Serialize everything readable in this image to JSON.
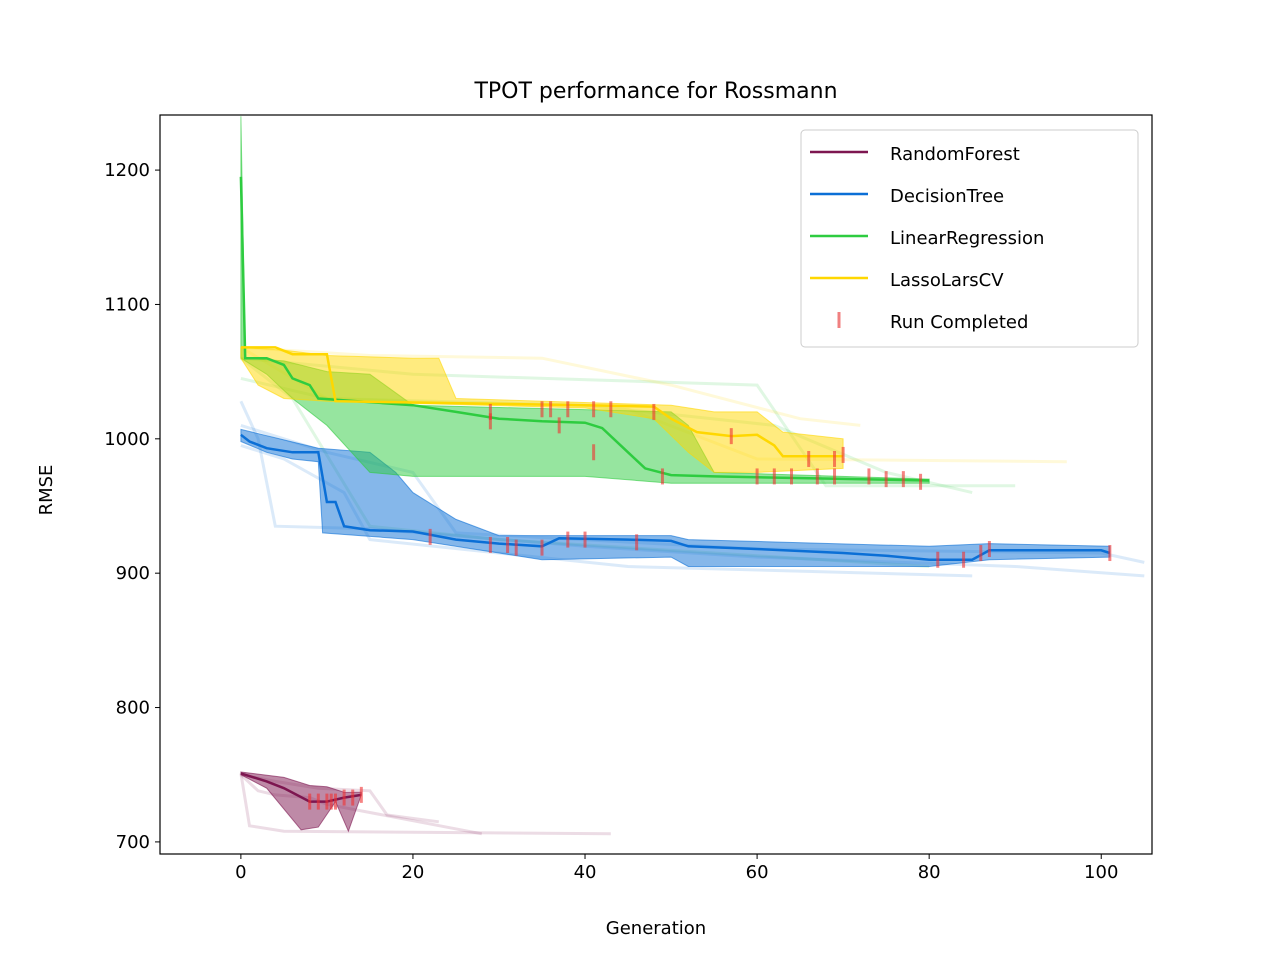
{
  "chart_data": {
    "type": "line",
    "title": "TPOT performance for Rossmann",
    "xlabel": "Generation",
    "ylabel": "RMSE",
    "xlim": [
      -9.4,
      105.9
    ],
    "ylim": [
      691,
      1241
    ],
    "xticks": [
      0,
      20,
      40,
      60,
      80,
      100
    ],
    "yticks": [
      700,
      800,
      900,
      1000,
      1100,
      1200
    ],
    "grid": false,
    "legend_position": "top-right",
    "series": [
      {
        "name": "RandomForest",
        "color": "#7d1650",
        "mean": [
          [
            0,
            751
          ],
          [
            3,
            745
          ],
          [
            5,
            740
          ],
          [
            8,
            730
          ],
          [
            10,
            730
          ],
          [
            12,
            733
          ],
          [
            14,
            735
          ]
        ],
        "upper": [
          [
            0,
            752
          ],
          [
            5,
            748
          ],
          [
            8,
            742
          ],
          [
            10,
            741
          ],
          [
            12,
            737
          ],
          [
            14,
            737
          ]
        ],
        "lower": [
          [
            0,
            750
          ],
          [
            3,
            740
          ],
          [
            7,
            709
          ],
          [
            9,
            711
          ],
          [
            11,
            730
          ],
          [
            12.5,
            708
          ],
          [
            14,
            735
          ]
        ],
        "runs": [
          [
            [
              0,
              750
            ],
            [
              4,
              745
            ],
            [
              7,
              742
            ],
            [
              9,
              740
            ],
            [
              15,
              738
            ],
            [
              17,
              720
            ],
            [
              23,
              715
            ]
          ],
          [
            [
              0,
              750
            ],
            [
              2,
              738
            ],
            [
              4,
              735
            ],
            [
              8,
              733
            ],
            [
              10,
              728
            ],
            [
              28,
              706
            ]
          ],
          [
            [
              0,
              751
            ],
            [
              1,
              712
            ],
            [
              5,
              708
            ],
            [
              43,
              706
            ]
          ]
        ],
        "completions": [
          8,
          9,
          10,
          10.5,
          11,
          12,
          13,
          14
        ],
        "completion_values": [
          730,
          730,
          730,
          730,
          730,
          733,
          733,
          735
        ]
      },
      {
        "name": "DecisionTree",
        "color": "#0b6fd6",
        "mean": [
          [
            0,
            1003
          ],
          [
            1,
            998
          ],
          [
            3,
            993
          ],
          [
            6,
            990
          ],
          [
            9,
            990
          ],
          [
            10,
            953
          ],
          [
            11,
            953
          ],
          [
            12,
            935
          ],
          [
            15,
            932
          ],
          [
            20,
            931
          ],
          [
            25,
            925
          ],
          [
            30,
            922
          ],
          [
            35,
            920
          ],
          [
            37,
            926
          ],
          [
            45,
            925
          ],
          [
            50,
            924
          ],
          [
            52,
            920
          ],
          [
            60,
            918
          ],
          [
            70,
            915
          ],
          [
            75,
            913
          ],
          [
            80,
            910
          ],
          [
            85,
            910
          ],
          [
            87,
            917
          ],
          [
            100,
            917
          ],
          [
            101,
            915
          ]
        ],
        "upper": [
          [
            0,
            1007
          ],
          [
            9,
            993
          ],
          [
            15,
            990
          ],
          [
            18,
            975
          ],
          [
            20,
            960
          ],
          [
            25,
            940
          ],
          [
            30,
            928
          ],
          [
            50,
            928
          ],
          [
            52,
            925
          ],
          [
            80,
            920
          ],
          [
            87,
            922
          ],
          [
            101,
            920
          ]
        ],
        "lower": [
          [
            0,
            998
          ],
          [
            3,
            990
          ],
          [
            6,
            985
          ],
          [
            9,
            983
          ],
          [
            9.5,
            930
          ],
          [
            20,
            925
          ],
          [
            30,
            915
          ],
          [
            35,
            910
          ],
          [
            50,
            912
          ],
          [
            52,
            905
          ],
          [
            80,
            905
          ],
          [
            87,
            910
          ],
          [
            101,
            912
          ]
        ],
        "runs": [
          [
            [
              0,
              1028
            ],
            [
              2,
              1000
            ],
            [
              4,
              935
            ],
            [
              15,
              933
            ],
            [
              40,
              920
            ],
            [
              60,
              912
            ],
            [
              90,
              905
            ],
            [
              105,
              898
            ]
          ],
          [
            [
              0,
              995
            ],
            [
              5,
              985
            ],
            [
              12,
              960
            ],
            [
              15,
              925
            ],
            [
              45,
              905
            ],
            [
              85,
              898
            ]
          ],
          [
            [
              0,
              1010
            ],
            [
              10,
              990
            ],
            [
              20,
              975
            ],
            [
              25,
              930
            ],
            [
              60,
              918
            ],
            [
              100,
              915
            ],
            [
              105,
              908
            ]
          ]
        ],
        "completions": [
          22,
          29,
          31,
          32,
          35,
          38,
          40,
          46,
          81,
          84,
          86,
          87,
          101
        ],
        "completion_values": [
          927,
          921,
          921,
          919,
          919,
          925,
          925,
          923,
          910,
          910,
          915,
          918,
          915
        ]
      },
      {
        "name": "LinearRegression",
        "color": "#2ecc40",
        "mean": [
          [
            0,
            1195
          ],
          [
            0.5,
            1060
          ],
          [
            3,
            1060
          ],
          [
            5,
            1055
          ],
          [
            6,
            1045
          ],
          [
            8,
            1040
          ],
          [
            9,
            1030
          ],
          [
            20,
            1025
          ],
          [
            25,
            1020
          ],
          [
            30,
            1015
          ],
          [
            35,
            1013
          ],
          [
            40,
            1012
          ],
          [
            42,
            1008
          ],
          [
            45,
            990
          ],
          [
            47,
            978
          ],
          [
            50,
            973
          ],
          [
            55,
            972
          ],
          [
            80,
            969
          ]
        ],
        "upper": [
          [
            0,
            1240
          ],
          [
            0.5,
            1060
          ],
          [
            5,
            1058
          ],
          [
            10,
            1050
          ],
          [
            15,
            1048
          ],
          [
            20,
            1025
          ],
          [
            50,
            1020
          ],
          [
            52,
            1010
          ],
          [
            55,
            975
          ],
          [
            80,
            970
          ]
        ],
        "lower": [
          [
            0,
            1060
          ],
          [
            3,
            1048
          ],
          [
            6,
            1030
          ],
          [
            10,
            1010
          ],
          [
            15,
            975
          ],
          [
            20,
            972
          ],
          [
            40,
            972
          ],
          [
            50,
            967
          ],
          [
            60,
            967
          ],
          [
            80,
            967
          ]
        ],
        "runs": [
          [
            [
              0,
              1060
            ],
            [
              20,
              1048
            ],
            [
              60,
              1040
            ],
            [
              68,
              965
            ],
            [
              90,
              965
            ]
          ],
          [
            [
              0,
              1060
            ],
            [
              6,
              1030
            ],
            [
              15,
              935
            ],
            [
              30,
              925
            ],
            [
              55,
              915
            ],
            [
              80,
              905
            ]
          ],
          [
            [
              0,
              1045
            ],
            [
              10,
              1030
            ],
            [
              40,
              1025
            ],
            [
              62,
              1010
            ],
            [
              75,
              975
            ],
            [
              85,
              960
            ]
          ]
        ],
        "completions": [
          29,
          37,
          41,
          49,
          60,
          62,
          64,
          67,
          69,
          73,
          75,
          77,
          79
        ],
        "completion_values": [
          1013,
          1010,
          990,
          972,
          972,
          972,
          972,
          972,
          972,
          972,
          970,
          970,
          968
        ]
      },
      {
        "name": "LassoLarsCV",
        "color": "#ffd700",
        "mean": [
          [
            0,
            1068
          ],
          [
            4,
            1068
          ],
          [
            6,
            1063
          ],
          [
            10,
            1063
          ],
          [
            11,
            1028
          ],
          [
            20,
            1027
          ],
          [
            40,
            1025
          ],
          [
            48,
            1024
          ],
          [
            50,
            1015
          ],
          [
            53,
            1005
          ],
          [
            57,
            1002
          ],
          [
            60,
            1003
          ],
          [
            62,
            995
          ],
          [
            63,
            987
          ],
          [
            70,
            987
          ]
        ],
        "upper": [
          [
            0,
            1068
          ],
          [
            5,
            1066
          ],
          [
            10,
            1062
          ],
          [
            20,
            1060
          ],
          [
            23,
            1060
          ],
          [
            25,
            1030
          ],
          [
            50,
            1025
          ],
          [
            55,
            1020
          ],
          [
            60,
            1020
          ],
          [
            63,
            1005
          ],
          [
            70,
            1000
          ]
        ],
        "lower": [
          [
            0,
            1060
          ],
          [
            2,
            1040
          ],
          [
            5,
            1030
          ],
          [
            10,
            1028
          ],
          [
            40,
            1023
          ],
          [
            48,
            1015
          ],
          [
            52,
            990
          ],
          [
            55,
            975
          ],
          [
            60,
            975
          ],
          [
            70,
            978
          ]
        ],
        "runs": [
          [
            [
              0,
              1068
            ],
            [
              15,
              1062
            ],
            [
              35,
              1060
            ],
            [
              50,
              1040
            ],
            [
              65,
              1015
            ],
            [
              72,
              1010
            ]
          ],
          [
            [
              0,
              1068
            ],
            [
              10,
              1030
            ],
            [
              45,
              1022
            ],
            [
              60,
              985
            ],
            [
              96,
              983
            ]
          ]
        ],
        "completions": [
          29,
          35,
          36,
          38,
          41,
          43,
          48,
          57,
          66,
          69,
          70
        ],
        "completion_values": [
          1020,
          1022,
          1022,
          1022,
          1022,
          1022,
          1020,
          1002,
          985,
          985,
          988
        ]
      }
    ],
    "legend": {
      "entries": [
        "RandomForest",
        "DecisionTree",
        "LinearRegression",
        "LassoLarsCV",
        "Run Completed"
      ],
      "completion_color": "#f08080"
    }
  }
}
